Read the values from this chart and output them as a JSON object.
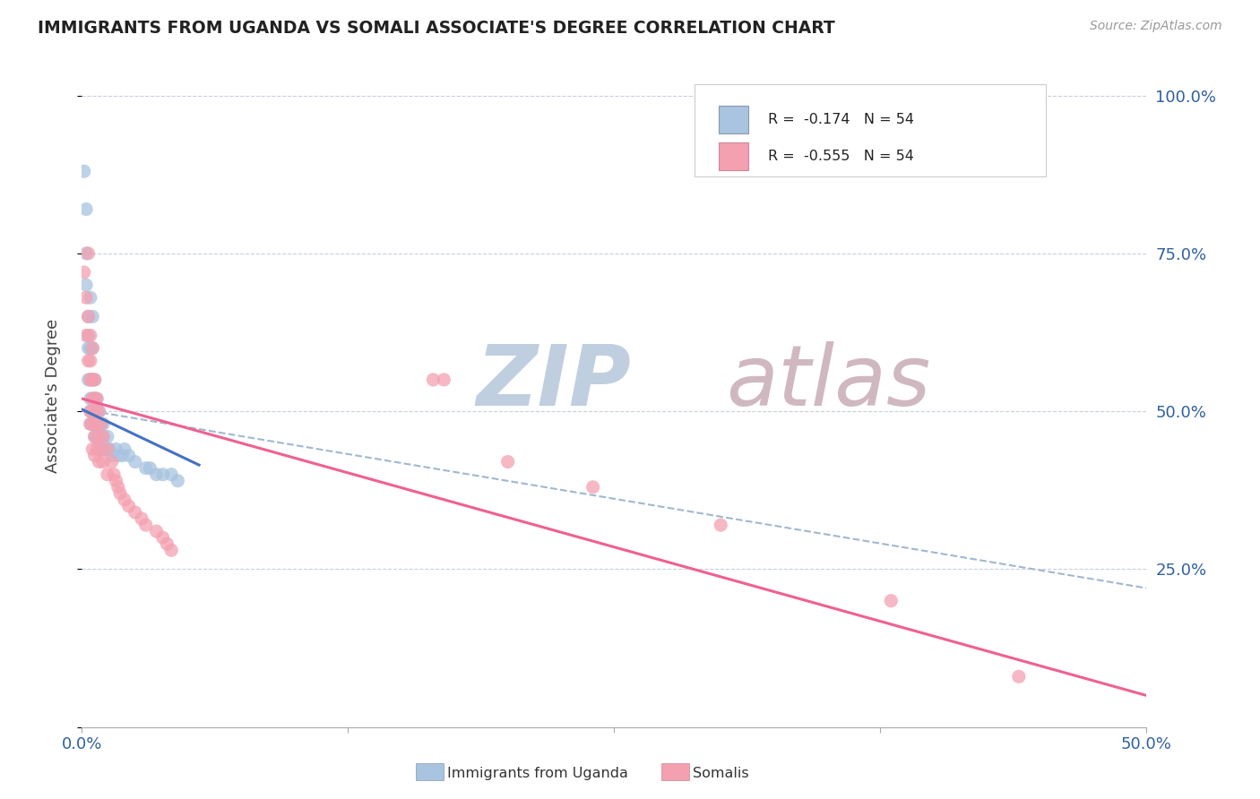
{
  "title": "IMMIGRANTS FROM UGANDA VS SOMALI ASSOCIATE'S DEGREE CORRELATION CHART",
  "source": "Source: ZipAtlas.com",
  "ylabel": "Associate's Degree",
  "legend_r1": "R =  -0.174   N = 54",
  "legend_r2": "R =  -0.555   N = 54",
  "legend_label1": "Immigrants from Uganda",
  "legend_label2": "Somalis",
  "xlim": [
    0.0,
    0.5
  ],
  "ylim": [
    0.0,
    1.05
  ],
  "uganda_color": "#a8c4e0",
  "somali_color": "#f4a0b0",
  "uganda_line_color": "#4472c4",
  "somali_line_color": "#f06090",
  "trend_dash_color": "#a0b8d0",
  "background_color": "#ffffff",
  "watermark_zip": "ZIP",
  "watermark_atlas": "atlas",
  "watermark_color_zip": "#c0cfe0",
  "watermark_color_atlas": "#d0b8c0",
  "uganda_scatter": [
    [
      0.001,
      0.88
    ],
    [
      0.002,
      0.82
    ],
    [
      0.002,
      0.75
    ],
    [
      0.002,
      0.7
    ],
    [
      0.003,
      0.65
    ],
    [
      0.003,
      0.62
    ],
    [
      0.003,
      0.6
    ],
    [
      0.003,
      0.55
    ],
    [
      0.004,
      0.68
    ],
    [
      0.004,
      0.6
    ],
    [
      0.004,
      0.55
    ],
    [
      0.004,
      0.52
    ],
    [
      0.004,
      0.5
    ],
    [
      0.004,
      0.48
    ],
    [
      0.005,
      0.65
    ],
    [
      0.005,
      0.6
    ],
    [
      0.005,
      0.55
    ],
    [
      0.005,
      0.52
    ],
    [
      0.005,
      0.5
    ],
    [
      0.005,
      0.48
    ],
    [
      0.006,
      0.55
    ],
    [
      0.006,
      0.52
    ],
    [
      0.006,
      0.5
    ],
    [
      0.006,
      0.48
    ],
    [
      0.006,
      0.46
    ],
    [
      0.007,
      0.52
    ],
    [
      0.007,
      0.5
    ],
    [
      0.007,
      0.48
    ],
    [
      0.007,
      0.46
    ],
    [
      0.008,
      0.5
    ],
    [
      0.008,
      0.48
    ],
    [
      0.008,
      0.45
    ],
    [
      0.009,
      0.48
    ],
    [
      0.009,
      0.46
    ],
    [
      0.009,
      0.44
    ],
    [
      0.01,
      0.48
    ],
    [
      0.01,
      0.46
    ],
    [
      0.01,
      0.44
    ],
    [
      0.012,
      0.46
    ],
    [
      0.012,
      0.44
    ],
    [
      0.013,
      0.44
    ],
    [
      0.014,
      0.43
    ],
    [
      0.016,
      0.44
    ],
    [
      0.017,
      0.43
    ],
    [
      0.019,
      0.43
    ],
    [
      0.02,
      0.44
    ],
    [
      0.022,
      0.43
    ],
    [
      0.025,
      0.42
    ],
    [
      0.03,
      0.41
    ],
    [
      0.032,
      0.41
    ],
    [
      0.035,
      0.4
    ],
    [
      0.038,
      0.4
    ],
    [
      0.042,
      0.4
    ],
    [
      0.045,
      0.39
    ]
  ],
  "somali_scatter": [
    [
      0.001,
      0.72
    ],
    [
      0.002,
      0.68
    ],
    [
      0.002,
      0.62
    ],
    [
      0.003,
      0.75
    ],
    [
      0.003,
      0.65
    ],
    [
      0.003,
      0.58
    ],
    [
      0.004,
      0.62
    ],
    [
      0.004,
      0.58
    ],
    [
      0.004,
      0.55
    ],
    [
      0.004,
      0.5
    ],
    [
      0.004,
      0.48
    ],
    [
      0.005,
      0.6
    ],
    [
      0.005,
      0.55
    ],
    [
      0.005,
      0.52
    ],
    [
      0.005,
      0.48
    ],
    [
      0.005,
      0.44
    ],
    [
      0.006,
      0.55
    ],
    [
      0.006,
      0.52
    ],
    [
      0.006,
      0.5
    ],
    [
      0.006,
      0.46
    ],
    [
      0.006,
      0.43
    ],
    [
      0.007,
      0.52
    ],
    [
      0.007,
      0.48
    ],
    [
      0.007,
      0.44
    ],
    [
      0.008,
      0.5
    ],
    [
      0.008,
      0.46
    ],
    [
      0.008,
      0.42
    ],
    [
      0.009,
      0.48
    ],
    [
      0.009,
      0.44
    ],
    [
      0.01,
      0.46
    ],
    [
      0.01,
      0.42
    ],
    [
      0.012,
      0.44
    ],
    [
      0.012,
      0.4
    ],
    [
      0.014,
      0.42
    ],
    [
      0.015,
      0.4
    ],
    [
      0.016,
      0.39
    ],
    [
      0.017,
      0.38
    ],
    [
      0.018,
      0.37
    ],
    [
      0.02,
      0.36
    ],
    [
      0.022,
      0.35
    ],
    [
      0.025,
      0.34
    ],
    [
      0.028,
      0.33
    ],
    [
      0.03,
      0.32
    ],
    [
      0.035,
      0.31
    ],
    [
      0.038,
      0.3
    ],
    [
      0.04,
      0.29
    ],
    [
      0.042,
      0.28
    ],
    [
      0.165,
      0.55
    ],
    [
      0.17,
      0.55
    ],
    [
      0.2,
      0.42
    ],
    [
      0.24,
      0.38
    ],
    [
      0.3,
      0.32
    ],
    [
      0.38,
      0.2
    ],
    [
      0.44,
      0.08
    ]
  ],
  "uganda_line": [
    [
      0.0,
      0.503
    ],
    [
      0.055,
      0.415
    ]
  ],
  "somali_line": [
    [
      0.0,
      0.52
    ],
    [
      0.5,
      0.05
    ]
  ],
  "uganda_dash_line": [
    [
      0.0,
      0.503
    ],
    [
      0.5,
      0.22
    ]
  ]
}
